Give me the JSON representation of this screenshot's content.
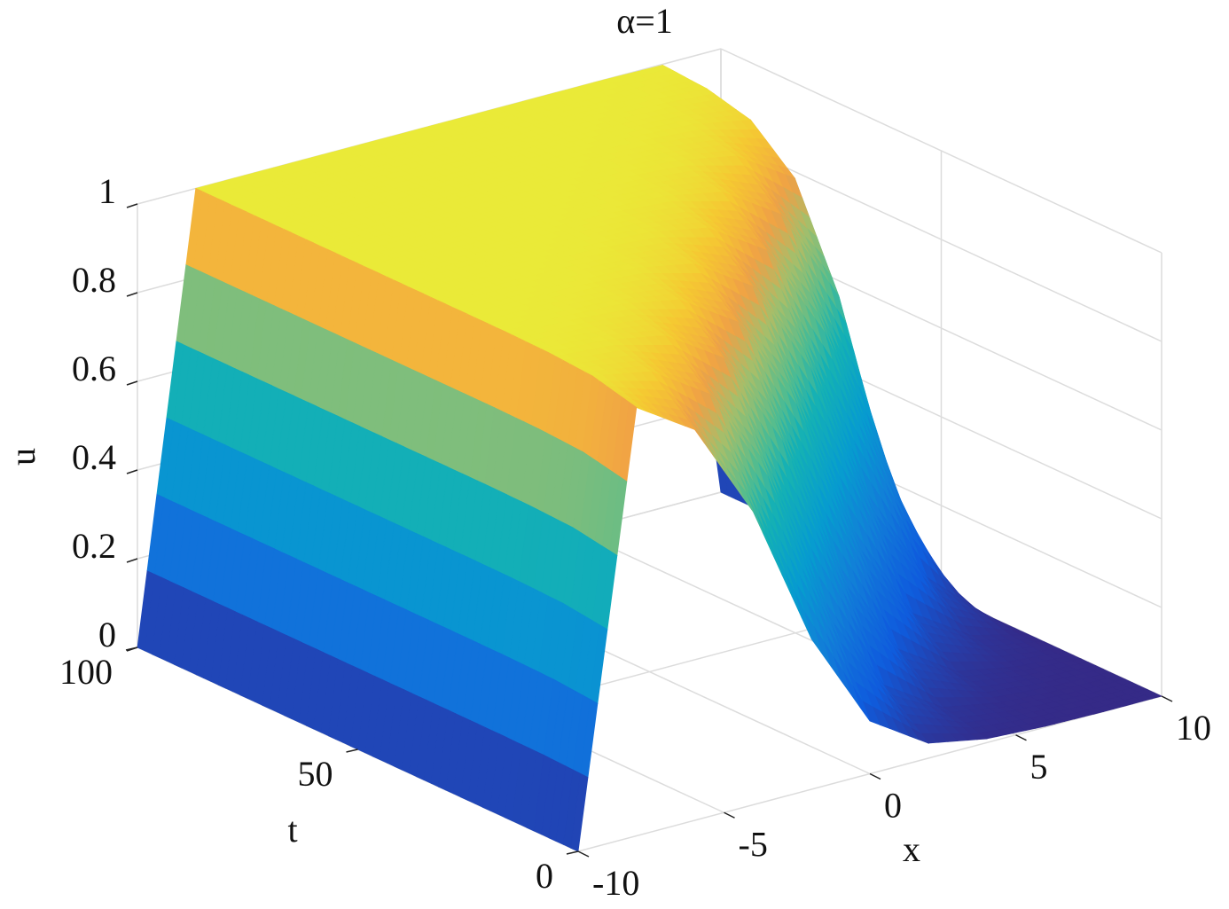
{
  "chart_data": {
    "type": "surface",
    "title": "α=1",
    "xlabel": "x",
    "ylabel": "t",
    "zlabel": "u",
    "x": [
      -10,
      -8,
      -6,
      -4,
      -2,
      0,
      2,
      4,
      6,
      8,
      10
    ],
    "t": [
      0,
      10,
      20,
      30,
      40,
      50,
      60,
      70,
      80,
      90,
      100
    ],
    "z": [
      [
        0,
        0.966,
        0.881,
        0.661,
        0.339,
        0.119,
        0.034,
        0.009,
        0.002,
        0,
        0
      ],
      [
        0,
        0.991,
        0.966,
        0.881,
        0.661,
        0.339,
        0.119,
        0.034,
        0.009,
        0.002,
        0
      ],
      [
        0,
        0.998,
        0.991,
        0.966,
        0.881,
        0.661,
        0.339,
        0.119,
        0.034,
        0.009,
        0
      ],
      [
        0,
        1,
        0.998,
        0.991,
        0.966,
        0.881,
        0.661,
        0.339,
        0.119,
        0.034,
        0
      ],
      [
        0,
        1,
        1,
        0.998,
        0.991,
        0.966,
        0.881,
        0.661,
        0.339,
        0.119,
        0
      ],
      [
        0,
        1,
        1,
        1,
        0.998,
        0.991,
        0.966,
        0.881,
        0.661,
        0.339,
        0
      ],
      [
        0,
        1,
        1,
        1,
        1,
        0.998,
        0.991,
        0.966,
        0.881,
        0.661,
        0
      ],
      [
        0,
        1,
        1,
        1,
        1,
        1,
        0.998,
        0.991,
        0.966,
        0.881,
        0
      ],
      [
        0,
        1,
        1,
        1,
        1,
        1,
        1,
        0.998,
        0.991,
        0.966,
        0
      ],
      [
        0,
        1,
        1,
        1,
        1,
        1,
        1,
        1,
        0.998,
        0.991,
        0
      ],
      [
        0,
        1,
        1,
        1,
        1,
        1,
        1,
        1,
        1,
        0.998,
        0
      ]
    ],
    "xlim": [
      -10,
      10
    ],
    "xticks": [
      -10,
      -5,
      0,
      5,
      10
    ],
    "ylim": [
      0,
      100
    ],
    "yticks": [
      0,
      50,
      100
    ],
    "zlim": [
      0,
      1
    ],
    "zticks": [
      0,
      0.2,
      0.4,
      0.6,
      0.8,
      1
    ],
    "colormap": "parula",
    "grid": true
  }
}
